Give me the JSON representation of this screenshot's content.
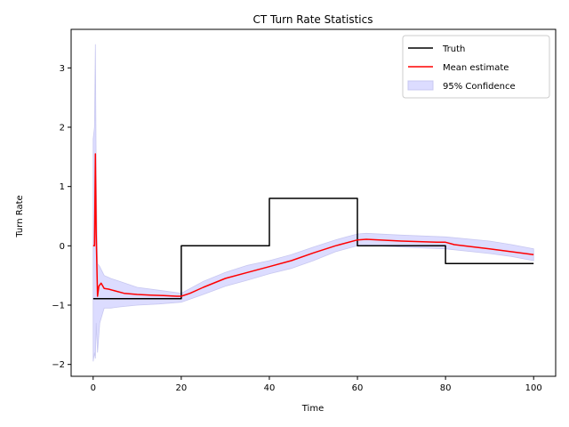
{
  "chart_data": {
    "type": "line",
    "title": "CT Turn Rate Statistics",
    "xlabel": "Time",
    "ylabel": "Turn Rate",
    "xlim": [
      -5,
      105
    ],
    "ylim": [
      -2.2,
      3.65
    ],
    "xticks": [
      0,
      20,
      40,
      60,
      80,
      100
    ],
    "yticks": [
      -2,
      -1,
      0,
      1,
      2,
      3
    ],
    "grid": false,
    "legend": "top-right",
    "colors": {
      "truth": "#000000",
      "mean": "#ff0000",
      "band_fill": "#dcdcff",
      "band_stroke": "#c8c8f0"
    },
    "legend_entries": [
      "Truth",
      "Mean estimate",
      "95% Confidence"
    ],
    "series": [
      {
        "name": "Truth",
        "x": [
          0,
          20,
          20,
          40,
          40,
          60,
          60,
          80,
          80,
          100
        ],
        "y": [
          -0.89,
          -0.89,
          0,
          0,
          0.8,
          0.8,
          0,
          0,
          -0.3,
          -0.3
        ]
      },
      {
        "name": "Mean estimate",
        "x": [
          0,
          0.3,
          0.5,
          0.7,
          1,
          1.3,
          1.8,
          2.5,
          3.5,
          5,
          7,
          10,
          13,
          16,
          19,
          20,
          22,
          25,
          30,
          35,
          40,
          45,
          50,
          55,
          60,
          62,
          70,
          78,
          80,
          82,
          90,
          95,
          100
        ],
        "y": [
          0,
          0,
          1.55,
          0.2,
          -0.85,
          -0.68,
          -0.63,
          -0.72,
          -0.73,
          -0.76,
          -0.8,
          -0.82,
          -0.83,
          -0.84,
          -0.85,
          -0.85,
          -0.8,
          -0.7,
          -0.55,
          -0.45,
          -0.35,
          -0.25,
          -0.12,
          0,
          0.1,
          0.11,
          0.08,
          0.06,
          0.06,
          0.02,
          -0.05,
          -0.1,
          -0.15
        ]
      },
      {
        "name": "95% Confidence",
        "x": [
          0,
          0.3,
          0.5,
          0.7,
          1,
          1.5,
          2.5,
          4,
          6,
          10,
          15,
          20,
          25,
          30,
          35,
          40,
          45,
          50,
          55,
          60,
          62,
          70,
          80,
          90,
          95,
          100
        ],
        "upper": [
          1.8,
          2.0,
          3.4,
          1.2,
          -0.3,
          -0.35,
          -0.5,
          -0.55,
          -0.6,
          -0.7,
          -0.75,
          -0.8,
          -0.6,
          -0.45,
          -0.33,
          -0.25,
          -0.15,
          -0.02,
          0.1,
          0.2,
          0.21,
          0.18,
          0.15,
          0.08,
          0.02,
          -0.05
        ],
        "lower": [
          -1.95,
          -1.8,
          -1.9,
          -1.3,
          -1.8,
          -1.3,
          -1.05,
          -1.05,
          -1.03,
          -1.0,
          -0.98,
          -0.95,
          -0.82,
          -0.68,
          -0.58,
          -0.47,
          -0.38,
          -0.25,
          -0.1,
          0,
          0.01,
          -0.02,
          -0.05,
          -0.13,
          -0.18,
          -0.25
        ]
      }
    ]
  }
}
